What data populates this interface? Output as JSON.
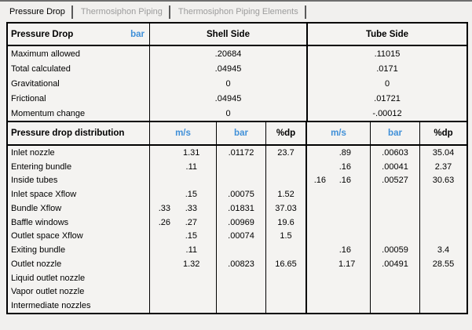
{
  "colors": {
    "accent_blue": "#4090d8",
    "tab_inactive_text": "#9c9c9c",
    "border": "#000000",
    "background": "#f1f0ee"
  },
  "tabs": [
    {
      "label": "Pressure Drop",
      "active": true
    },
    {
      "label": "Thermosiphon Piping",
      "active": false
    },
    {
      "label": "Thermosiphon Piping Elements",
      "active": false
    }
  ],
  "summary": {
    "title": "Pressure Drop",
    "unit": "bar",
    "col_headers": [
      "Shell Side",
      "Tube Side"
    ],
    "rows": [
      {
        "label": "Maximum allowed",
        "shell": ".20684",
        "tube": ".11015"
      },
      {
        "label": "Total calculated",
        "shell": ".04945",
        "tube": ".0171"
      },
      {
        "label": "Gravitational",
        "shell": "0",
        "tube": "0"
      },
      {
        "label": "Frictional",
        "shell": ".04945",
        "tube": ".01721"
      },
      {
        "label": "Momentum change",
        "shell": "0",
        "tube": "-.00012"
      }
    ]
  },
  "distribution": {
    "title": "Pressure drop distribution",
    "col_headers": {
      "shell_ms": "m/s",
      "shell_bar": "bar",
      "shell_dp": "%dp",
      "tube_ms": "m/s",
      "tube_bar": "bar",
      "tube_dp": "%dp"
    },
    "rows": [
      {
        "label": "Inlet nozzle",
        "s_ms1": "",
        "s_ms2": "1.31",
        "s_bar": ".01172",
        "s_dp": "23.7",
        "t_ms1": "",
        "t_ms2": ".89",
        "t_bar": ".00603",
        "t_dp": "35.04"
      },
      {
        "label": "Entering bundle",
        "s_ms1": "",
        "s_ms2": ".11",
        "s_bar": "",
        "s_dp": "",
        "t_ms1": "",
        "t_ms2": ".16",
        "t_bar": ".00041",
        "t_dp": "2.37"
      },
      {
        "label": "Inside tubes",
        "s_ms1": "",
        "s_ms2": "",
        "s_bar": "",
        "s_dp": "",
        "t_ms1": ".16",
        "t_ms2": ".16",
        "t_bar": ".00527",
        "t_dp": "30.63"
      },
      {
        "label": "Inlet space Xflow",
        "s_ms1": "",
        "s_ms2": ".15",
        "s_bar": ".00075",
        "s_dp": "1.52",
        "t_ms1": "",
        "t_ms2": "",
        "t_bar": "",
        "t_dp": ""
      },
      {
        "label": "Bundle Xflow",
        "s_ms1": ".33",
        "s_ms2": ".33",
        "s_bar": ".01831",
        "s_dp": "37.03",
        "t_ms1": "",
        "t_ms2": "",
        "t_bar": "",
        "t_dp": ""
      },
      {
        "label": "Baffle windows",
        "s_ms1": ".26",
        "s_ms2": ".27",
        "s_bar": ".00969",
        "s_dp": "19.6",
        "t_ms1": "",
        "t_ms2": "",
        "t_bar": "",
        "t_dp": ""
      },
      {
        "label": "Outlet space Xflow",
        "s_ms1": "",
        "s_ms2": ".15",
        "s_bar": ".00074",
        "s_dp": "1.5",
        "t_ms1": "",
        "t_ms2": "",
        "t_bar": "",
        "t_dp": ""
      },
      {
        "label": "Exiting bundle",
        "s_ms1": "",
        "s_ms2": ".11",
        "s_bar": "",
        "s_dp": "",
        "t_ms1": "",
        "t_ms2": ".16",
        "t_bar": ".00059",
        "t_dp": "3.4"
      },
      {
        "label": "Outlet nozzle",
        "s_ms1": "",
        "s_ms2": "1.32",
        "s_bar": ".00823",
        "s_dp": "16.65",
        "t_ms1": "",
        "t_ms2": "1.17",
        "t_bar": ".00491",
        "t_dp": "28.55"
      },
      {
        "label": "Liquid outlet nozzle",
        "s_ms1": "",
        "s_ms2": "",
        "s_bar": "",
        "s_dp": "",
        "t_ms1": "",
        "t_ms2": "",
        "t_bar": "",
        "t_dp": ""
      },
      {
        "label": "Vapor outlet nozzle",
        "s_ms1": "",
        "s_ms2": "",
        "s_bar": "",
        "s_dp": "",
        "t_ms1": "",
        "t_ms2": "",
        "t_bar": "",
        "t_dp": ""
      },
      {
        "label": "Intermediate nozzles",
        "s_ms1": "",
        "s_ms2": "",
        "s_bar": "",
        "s_dp": "",
        "t_ms1": "",
        "t_ms2": "",
        "t_bar": "",
        "t_dp": ""
      }
    ]
  }
}
